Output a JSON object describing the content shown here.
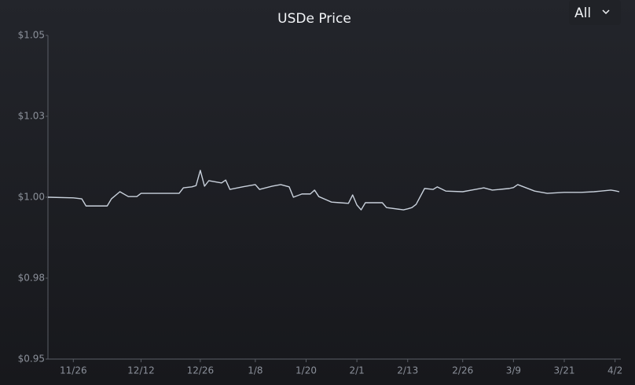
{
  "chart_data": {
    "type": "line",
    "title": "USDe Price",
    "range_selector": "All",
    "x": [
      "11/20",
      "11/26",
      "11/28",
      "11/29",
      "12/4",
      "12/5",
      "12/7",
      "12/9",
      "12/11",
      "12/12",
      "12/18",
      "12/21",
      "12/22",
      "12/24",
      "12/25",
      "12/26",
      "12/27",
      "12/28",
      "12/31",
      "1/1",
      "1/2",
      "1/5",
      "1/8",
      "1/9",
      "1/12",
      "1/14",
      "1/16",
      "1/17",
      "1/19",
      "1/20",
      "1/21",
      "1/22",
      "1/23",
      "1/26",
      "1/28",
      "1/30",
      "1/31",
      "2/1",
      "2/2",
      "2/3",
      "2/7",
      "2/8",
      "2/12",
      "2/13",
      "2/14",
      "2/15",
      "2/17",
      "2/19",
      "2/20",
      "2/22",
      "2/26",
      "2/29",
      "3/2",
      "3/4",
      "3/8",
      "3/9",
      "3/10",
      "3/12",
      "3/14",
      "3/17",
      "3/21",
      "3/25",
      "3/28",
      "4/1",
      "4/2",
      "4/3"
    ],
    "series": [
      {
        "name": "USDe",
        "color": "#c9d1dc",
        "values": [
          1.0,
          0.9998,
          0.9995,
          0.9973,
          0.9973,
          0.9995,
          1.0017,
          1.0002,
          1.0002,
          1.0012,
          1.0012,
          1.0012,
          1.0029,
          1.0032,
          1.0036,
          1.0083,
          1.0034,
          1.0051,
          1.0044,
          1.0053,
          1.0024,
          1.0032,
          1.0039,
          1.0024,
          1.0034,
          1.0039,
          1.0032,
          1.0,
          1.001,
          1.001,
          1.001,
          1.0022,
          1.0002,
          0.9985,
          0.9983,
          0.9981,
          1.0007,
          0.9976,
          0.9961,
          0.9983,
          0.9983,
          0.9968,
          0.9961,
          0.9964,
          0.9968,
          0.9978,
          1.0027,
          1.0024,
          1.0032,
          1.0019,
          1.0017,
          1.0024,
          1.0029,
          1.0022,
          1.0027,
          1.003,
          1.0039,
          1.0029,
          1.0019,
          1.0012,
          1.0015,
          1.0015,
          1.0017,
          1.0022,
          1.002,
          1.0017
        ]
      }
    ],
    "xlim": [
      "11/20",
      "4/3"
    ],
    "xticks": [
      "11/26",
      "12/12",
      "12/26",
      "1/8",
      "1/20",
      "2/1",
      "2/13",
      "2/26",
      "3/9",
      "3/21",
      "4/2"
    ],
    "ylim": [
      0.95,
      1.05
    ],
    "yticks": [
      {
        "value": 0.95,
        "label": "$0.95"
      },
      {
        "value": 0.975,
        "label": "$0.98"
      },
      {
        "value": 1.0,
        "label": "$1.00"
      },
      {
        "value": 1.025,
        "label": "$1.03"
      },
      {
        "value": 1.05,
        "label": "$1.05"
      }
    ]
  }
}
